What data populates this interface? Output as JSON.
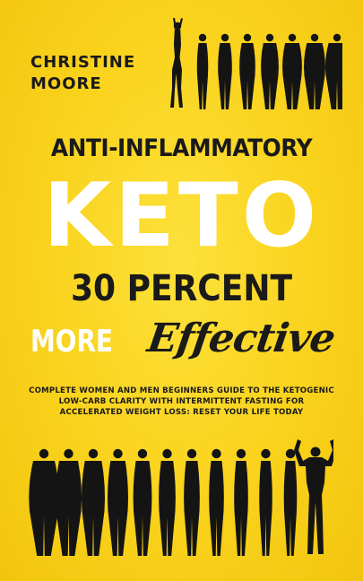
{
  "cover": {
    "author": {
      "first_name": "CHRISTINE",
      "last_name": "MOORE"
    },
    "title": {
      "line1": "ANTI-INFLAMMATORY",
      "line2": "KETO",
      "line3": "30 PERCENT",
      "line4a": "MORE",
      "line4b": "Effective"
    },
    "subtitle": "COMPLETE WOMEN AND MEN BEGINNERS GUIDE TO THE KETOGENIC LOW-CARB CLARITY WITH INTERMITTENT FASTING FOR ACCELERATED WEIGHT LOSS: RESET YOUR LIFE TODAY",
    "colors": {
      "background": "#f9d21c",
      "dark_text": "#1a1a1a",
      "light_text": "#ffffff",
      "silhouette": "#141414"
    },
    "illustrations": {
      "top": "woman-weight-loss-silhouettes-icon",
      "bottom": "man-weight-loss-silhouettes-icon"
    }
  }
}
